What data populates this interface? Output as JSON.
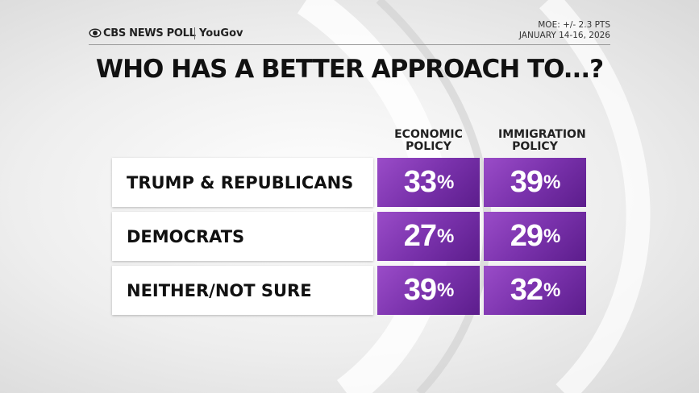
{
  "header": {
    "brand": "CBS NEWS POLL",
    "partner": "YouGov",
    "moe": "MOE: +/- 2.3 PTS",
    "dates": "JANUARY 14-16, 2026"
  },
  "title": "WHO HAS A BETTER APPROACH TO...?",
  "table": {
    "columns": [
      "ECONOMIC POLICY",
      "IMMIGRATION POLICY"
    ],
    "rows": [
      [
        "TRUMP & REPUBLICANS",
        "33%",
        "39%"
      ],
      [
        "DEMOCRATS",
        "27%",
        "29%"
      ],
      [
        "NEITHER/NOT SURE",
        "39%",
        "32%"
      ]
    ]
  }
}
